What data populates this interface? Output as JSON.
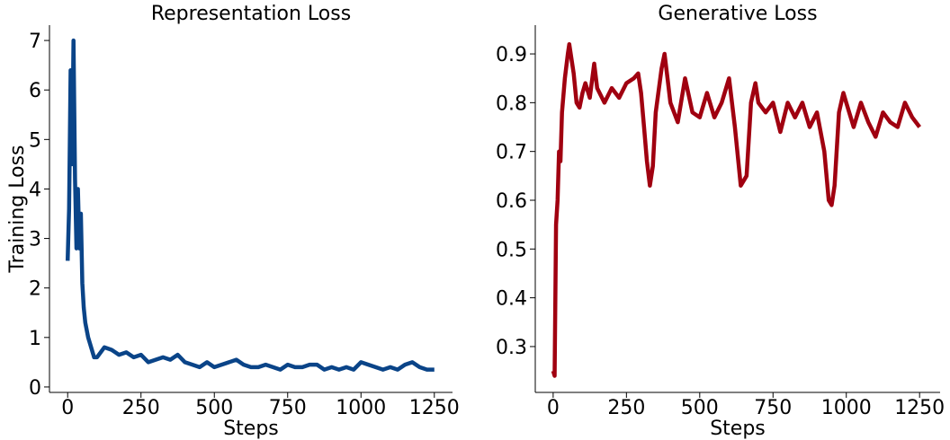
{
  "chart_data": [
    {
      "type": "line",
      "title": "Representation Loss",
      "xlabel": "Steps",
      "ylabel": "Training Loss",
      "xlim": [
        -62,
        1312
      ],
      "ylim": [
        -0.11,
        7.31
      ],
      "xticks": [
        0,
        250,
        500,
        750,
        1000,
        1250
      ],
      "yticks": [
        0,
        1,
        2,
        3,
        4,
        5,
        6,
        7
      ],
      "series": [
        {
          "name": "Representation",
          "color": "#0a4488",
          "x": [
            0,
            5,
            10,
            15,
            20,
            25,
            30,
            35,
            40,
            45,
            50,
            55,
            60,
            70,
            80,
            90,
            100,
            125,
            150,
            175,
            200,
            225,
            250,
            275,
            300,
            325,
            350,
            375,
            400,
            425,
            450,
            475,
            500,
            525,
            550,
            575,
            600,
            625,
            650,
            675,
            700,
            725,
            750,
            775,
            800,
            825,
            850,
            875,
            900,
            925,
            950,
            975,
            1000,
            1025,
            1050,
            1075,
            1100,
            1125,
            1150,
            1175,
            1200,
            1225,
            1250
          ],
          "values": [
            2.55,
            3.6,
            6.4,
            4.5,
            7.0,
            4.2,
            2.8,
            4.0,
            2.8,
            3.5,
            2.1,
            1.6,
            1.3,
            1.0,
            0.8,
            0.6,
            0.6,
            0.8,
            0.75,
            0.65,
            0.7,
            0.6,
            0.65,
            0.5,
            0.55,
            0.6,
            0.55,
            0.65,
            0.5,
            0.45,
            0.4,
            0.5,
            0.4,
            0.45,
            0.5,
            0.55,
            0.45,
            0.4,
            0.4,
            0.45,
            0.4,
            0.35,
            0.45,
            0.4,
            0.4,
            0.45,
            0.45,
            0.35,
            0.4,
            0.35,
            0.4,
            0.35,
            0.5,
            0.45,
            0.4,
            0.35,
            0.4,
            0.35,
            0.45,
            0.5,
            0.4,
            0.35,
            0.35
          ]
        }
      ]
    },
    {
      "type": "line",
      "title": "Generative Loss",
      "xlabel": "Steps",
      "xlim": [
        -61,
        1320
      ],
      "ylim": [
        0.206,
        0.959
      ],
      "xticks": [
        0,
        250,
        500,
        750,
        1000,
        1250
      ],
      "yticks": [
        0.3,
        0.4,
        0.5,
        0.6,
        0.7,
        0.8,
        0.9
      ],
      "series": [
        {
          "name": "Generative",
          "color": "#a00010",
          "x": [
            0,
            5,
            10,
            15,
            20,
            25,
            30,
            40,
            50,
            55,
            60,
            70,
            80,
            90,
            100,
            110,
            125,
            140,
            150,
            175,
            200,
            225,
            250,
            275,
            290,
            300,
            310,
            320,
            330,
            340,
            350,
            370,
            380,
            390,
            400,
            425,
            450,
            475,
            500,
            525,
            550,
            575,
            600,
            620,
            640,
            660,
            675,
            690,
            700,
            725,
            750,
            775,
            800,
            825,
            850,
            875,
            900,
            925,
            940,
            950,
            960,
            975,
            990,
            1000,
            1025,
            1050,
            1075,
            1100,
            1125,
            1150,
            1175,
            1200,
            1225,
            1250
          ],
          "values": [
            0.25,
            0.24,
            0.55,
            0.6,
            0.7,
            0.68,
            0.78,
            0.85,
            0.9,
            0.92,
            0.9,
            0.86,
            0.8,
            0.79,
            0.82,
            0.84,
            0.81,
            0.88,
            0.83,
            0.8,
            0.83,
            0.81,
            0.84,
            0.85,
            0.86,
            0.82,
            0.75,
            0.68,
            0.63,
            0.67,
            0.78,
            0.87,
            0.9,
            0.85,
            0.8,
            0.76,
            0.85,
            0.78,
            0.77,
            0.82,
            0.77,
            0.8,
            0.85,
            0.75,
            0.63,
            0.65,
            0.8,
            0.84,
            0.8,
            0.78,
            0.8,
            0.74,
            0.8,
            0.77,
            0.8,
            0.75,
            0.78,
            0.7,
            0.6,
            0.59,
            0.63,
            0.78,
            0.82,
            0.8,
            0.75,
            0.8,
            0.76,
            0.73,
            0.78,
            0.76,
            0.75,
            0.8,
            0.77,
            0.75
          ]
        }
      ]
    }
  ]
}
